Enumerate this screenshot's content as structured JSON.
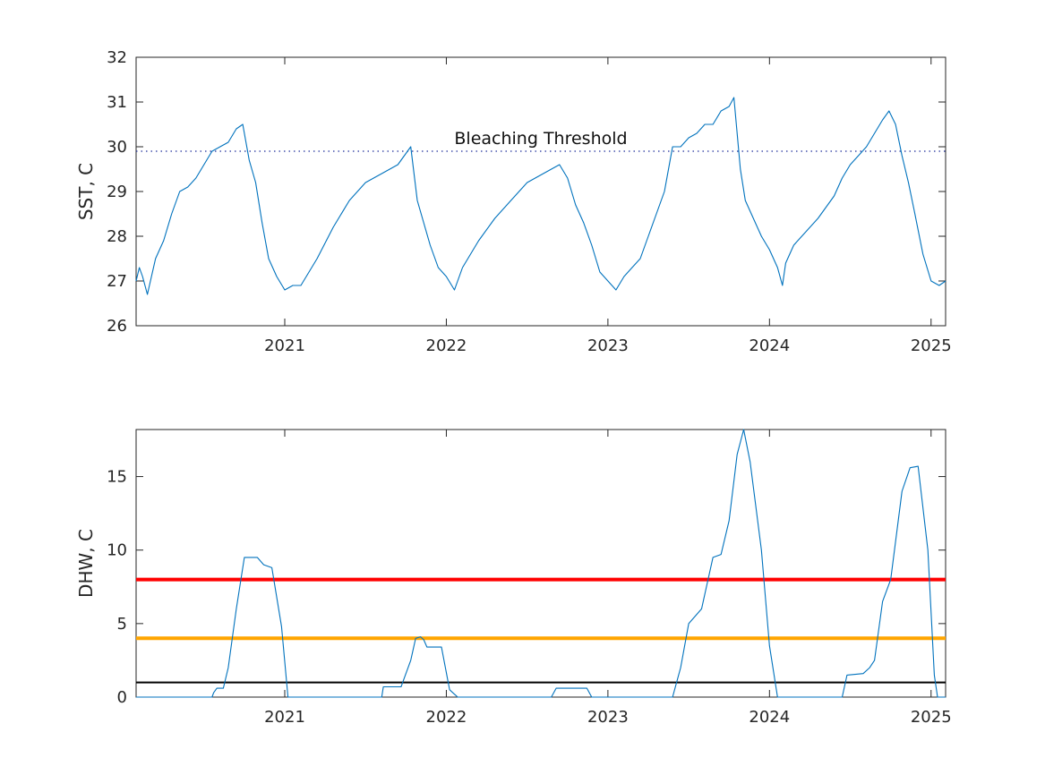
{
  "chart_data": [
    {
      "type": "line",
      "ylabel": "SST, C",
      "xlabel": "",
      "xlim": [
        2020.08,
        2025.09
      ],
      "ylim": [
        26,
        32
      ],
      "yticks": [
        26,
        27,
        28,
        29,
        30,
        31,
        32
      ],
      "xticks": [
        2021,
        2022,
        2023,
        2024,
        2025
      ],
      "grid": false,
      "series": [
        {
          "color": "#0072BD",
          "x": [
            2020.08,
            2020.1,
            2020.12,
            2020.15,
            2020.2,
            2020.25,
            2020.3,
            2020.35,
            2020.4,
            2020.45,
            2020.5,
            2020.55,
            2020.6,
            2020.65,
            2020.7,
            2020.74,
            2020.78,
            2020.82,
            2020.86,
            2020.9,
            2020.95,
            2021.0,
            2021.05,
            2021.1,
            2021.2,
            2021.3,
            2021.4,
            2021.5,
            2021.6,
            2021.7,
            2021.78,
            2021.82,
            2021.86,
            2021.9,
            2021.95,
            2022.0,
            2022.05,
            2022.1,
            2022.2,
            2022.3,
            2022.4,
            2022.5,
            2022.6,
            2022.7,
            2022.75,
            2022.8,
            2022.85,
            2022.9,
            2022.95,
            2023.0,
            2023.05,
            2023.1,
            2023.15,
            2023.2,
            2023.25,
            2023.3,
            2023.35,
            2023.4,
            2023.45,
            2023.5,
            2023.55,
            2023.6,
            2023.65,
            2023.7,
            2023.75,
            2023.78,
            2023.82,
            2023.85,
            2023.9,
            2023.95,
            2024.0,
            2024.05,
            2024.08,
            2024.1,
            2024.15,
            2024.2,
            2024.3,
            2024.4,
            2024.45,
            2024.5,
            2024.55,
            2024.6,
            2024.65,
            2024.7,
            2024.74,
            2024.78,
            2024.82,
            2024.86,
            2024.9,
            2024.95,
            2025.0,
            2025.05,
            2025.09
          ],
          "y": [
            27.0,
            27.3,
            27.1,
            26.7,
            27.5,
            27.9,
            28.5,
            29.0,
            29.1,
            29.3,
            29.6,
            29.9,
            30.0,
            30.1,
            30.4,
            30.5,
            29.7,
            29.2,
            28.3,
            27.5,
            27.1,
            26.8,
            26.9,
            26.9,
            27.5,
            28.2,
            28.8,
            29.2,
            29.4,
            29.6,
            30.0,
            28.8,
            28.3,
            27.8,
            27.3,
            27.1,
            26.8,
            27.3,
            27.9,
            28.4,
            28.8,
            29.2,
            29.4,
            29.6,
            29.3,
            28.7,
            28.3,
            27.8,
            27.2,
            27.0,
            26.8,
            27.1,
            27.3,
            27.5,
            28.0,
            28.5,
            29.0,
            30.0,
            30.0,
            30.2,
            30.3,
            30.5,
            30.5,
            30.8,
            30.9,
            31.1,
            29.5,
            28.8,
            28.4,
            28.0,
            27.7,
            27.3,
            26.9,
            27.4,
            27.8,
            28.0,
            28.4,
            28.9,
            29.3,
            29.6,
            29.8,
            30.0,
            30.3,
            30.6,
            30.8,
            30.5,
            29.8,
            29.2,
            28.5,
            27.6,
            27.0,
            26.9,
            27.0
          ]
        }
      ],
      "threshold": {
        "value": 29.9,
        "label": "Bleaching Threshold",
        "color": "#1f2f9a",
        "style": "dotted"
      }
    },
    {
      "type": "line",
      "ylabel": "DHW, C",
      "xlabel": "",
      "xlim": [
        2020.08,
        2025.09
      ],
      "ylim": [
        0,
        18.2
      ],
      "yticks": [
        0,
        5,
        10,
        15
      ],
      "xticks": [
        2021,
        2022,
        2023,
        2024,
        2025
      ],
      "grid": false,
      "series": [
        {
          "color": "#0072BD",
          "x": [
            2020.08,
            2020.55,
            2020.56,
            2020.58,
            2020.62,
            2020.65,
            2020.7,
            2020.75,
            2020.83,
            2020.87,
            2020.92,
            2020.98,
            2021.02,
            2021.5,
            2021.6,
            2021.61,
            2021.72,
            2021.78,
            2021.81,
            2021.84,
            2021.86,
            2021.88,
            2021.97,
            2022.02,
            2022.07,
            2022.65,
            2022.68,
            2022.87,
            2022.9,
            2023.4,
            2023.45,
            2023.5,
            2023.58,
            2023.6,
            2023.65,
            2023.7,
            2023.75,
            2023.8,
            2023.84,
            2023.88,
            2023.95,
            2024.0,
            2024.05,
            2024.08,
            2024.1,
            2024.2,
            2024.3,
            2024.45,
            2024.48,
            2024.58,
            2024.62,
            2024.65,
            2024.7,
            2024.75,
            2024.82,
            2024.87,
            2024.92,
            2024.98,
            2025.02,
            2025.04,
            2025.09
          ],
          "y": [
            0,
            0,
            0.3,
            0.6,
            0.6,
            2.0,
            6.0,
            9.5,
            9.5,
            9.0,
            8.8,
            4.8,
            0,
            0,
            0,
            0.7,
            0.7,
            2.5,
            4.0,
            4.1,
            3.9,
            3.4,
            3.4,
            0.5,
            0,
            0,
            0.6,
            0.6,
            0,
            0,
            2.0,
            5.0,
            6.0,
            7.0,
            9.5,
            9.7,
            12.0,
            16.5,
            18.2,
            16.0,
            10.0,
            3.5,
            0,
            0,
            0,
            0,
            0,
            0,
            1.5,
            1.6,
            2.0,
            2.5,
            6.5,
            8.0,
            14.0,
            15.6,
            15.7,
            10.0,
            1.5,
            0,
            0
          ]
        }
      ],
      "hlines": [
        {
          "value": 8,
          "color": "#ff0000",
          "width": 4
        },
        {
          "value": 4,
          "color": "#ffa500",
          "width": 4
        },
        {
          "value": 1,
          "color": "#000000",
          "width": 2
        }
      ]
    }
  ]
}
